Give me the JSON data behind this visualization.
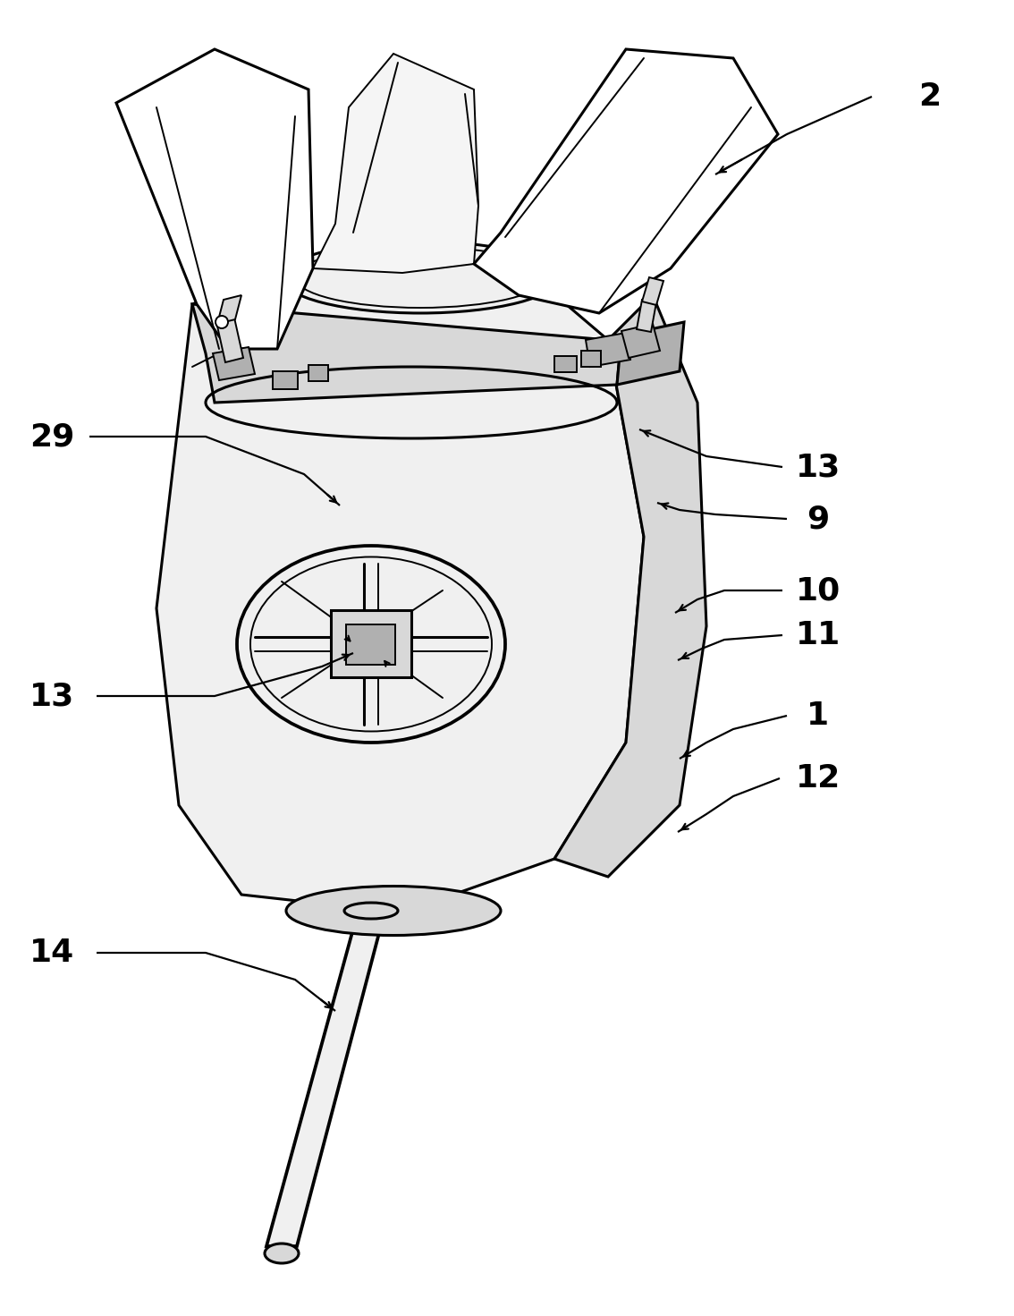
{
  "fig_width": 11.34,
  "fig_height": 14.71,
  "dpi": 100,
  "bg_color": "#ffffff",
  "lc": "#000000",
  "lw_main": 2.2,
  "lw_thin": 1.4,
  "lw_label": 1.6,
  "label_fontsize": 26,
  "fill_light": "#f0f0f0",
  "fill_mid": "#d8d8d8",
  "fill_dark": "#b0b0b0",
  "fill_body": "#e8e8e8",
  "fill_white": "#ffffff"
}
